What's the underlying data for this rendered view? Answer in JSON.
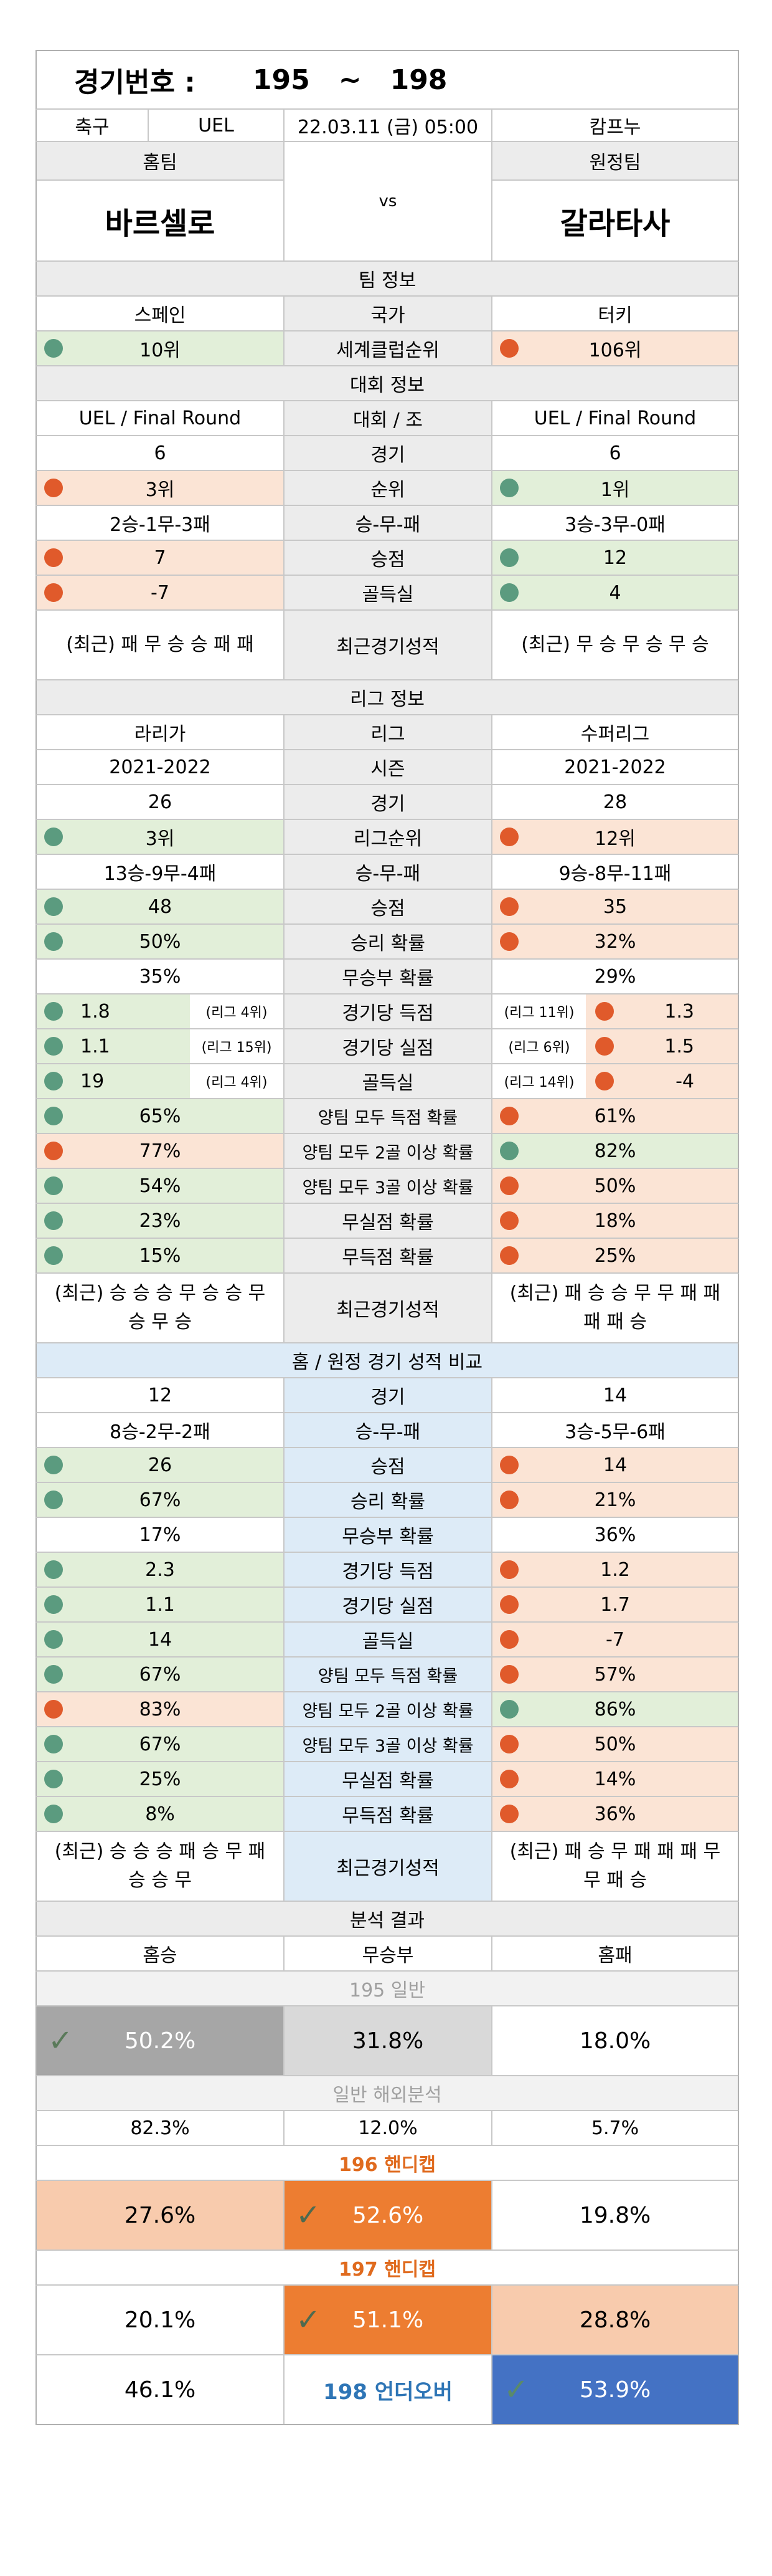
{
  "title": {
    "label": "경기번호 :",
    "from": "195",
    "tilde": "~",
    "to": "198"
  },
  "match": {
    "sport": "축구",
    "league": "UEL",
    "datetime": "22.03.11 (금) 05:00",
    "venue": "캄프누"
  },
  "teams": {
    "home_label": "홈팀",
    "away_label": "원정팀",
    "vs": "vs",
    "home": "바르셀로",
    "away": "갈라타사"
  },
  "sections": {
    "team_info": "팀 정보",
    "tournament_info": "대회 정보",
    "league_info": "리그 정보",
    "home_away": "홈 / 원정 경기 성적 비교",
    "analysis": "분석 결과"
  },
  "team_info": [
    {
      "home": "스페인",
      "label": "국가",
      "away": "터키",
      "hc": "",
      "ac": ""
    },
    {
      "home": "10위",
      "label": "세계클럽순위",
      "away": "106위",
      "hc": "green",
      "ac": "salmon",
      "hd": "g",
      "ad": "r"
    }
  ],
  "tournament_info": [
    {
      "home": "UEL / Final Round",
      "label": "대회 / 조",
      "away": "UEL / Final Round"
    },
    {
      "home": "6",
      "label": "경기",
      "away": "6"
    },
    {
      "home": "3위",
      "label": "순위",
      "away": "1위",
      "hc": "salmon",
      "ac": "green",
      "hd": "r",
      "ad": "g"
    },
    {
      "home": "2승-1무-3패",
      "label": "승-무-패",
      "away": "3승-3무-0패"
    },
    {
      "home": "7",
      "label": "승점",
      "away": "12",
      "hc": "salmon",
      "ac": "green",
      "hd": "r",
      "ad": "g"
    },
    {
      "home": "-7",
      "label": "골득실",
      "away": "4",
      "hc": "salmon",
      "ac": "green",
      "hd": "r",
      "ad": "g"
    },
    {
      "home": "(최근) 패 무 승 승 패 패",
      "label": "최근경기성적",
      "away": "(최근) 무 승 무 승 무 승",
      "tall": true
    }
  ],
  "league_info": [
    {
      "home": "라리가",
      "label": "리그",
      "away": "수퍼리그"
    },
    {
      "home": "2021-2022",
      "label": "시즌",
      "away": "2021-2022"
    },
    {
      "home": "26",
      "label": "경기",
      "away": "28"
    },
    {
      "home": "3위",
      "label": "리그순위",
      "away": "12위",
      "hc": "green",
      "ac": "salmon",
      "hd": "g",
      "ad": "r"
    },
    {
      "home": "13승-9무-4패",
      "label": "승-무-패",
      "away": "9승-8무-11패"
    },
    {
      "home": "48",
      "label": "승점",
      "away": "35",
      "hc": "green",
      "ac": "salmon",
      "hd": "g",
      "ad": "r"
    },
    {
      "home": "50%",
      "label": "승리 확률",
      "away": "32%",
      "hc": "green",
      "ac": "salmon",
      "hd": "g",
      "ad": "r"
    },
    {
      "home": "35%",
      "label": "무승부 확률",
      "away": "29%"
    },
    {
      "home": "1.8",
      "label": "경기당 득점",
      "away": "1.3",
      "hc": "green",
      "ac": "salmon",
      "hd": "g",
      "ad": "r",
      "hr": "(리그 4위)",
      "ar": "(리그 11위)"
    },
    {
      "home": "1.1",
      "label": "경기당 실점",
      "away": "1.5",
      "hc": "green",
      "ac": "salmon",
      "hd": "g",
      "ad": "r",
      "hr": "(리그 15위)",
      "ar": "(리그 6위)"
    },
    {
      "home": "19",
      "label": "골득실",
      "away": "-4",
      "hc": "green",
      "ac": "salmon",
      "hd": "g",
      "ad": "r",
      "hr": "(리그 4위)",
      "ar": "(리그 14위)"
    },
    {
      "home": "65%",
      "label": "양팀 모두 득점 확률",
      "away": "61%",
      "hc": "green",
      "ac": "salmon",
      "hd": "g",
      "ad": "r"
    },
    {
      "home": "77%",
      "label": "양팀 모두 2골 이상 확률",
      "away": "82%",
      "hc": "salmon",
      "ac": "green",
      "hd": "r",
      "ad": "g"
    },
    {
      "home": "54%",
      "label": "양팀 모두 3골 이상 확률",
      "away": "50%",
      "hc": "green",
      "ac": "salmon",
      "hd": "g",
      "ad": "r"
    },
    {
      "home": "23%",
      "label": "무실점 확률",
      "away": "18%",
      "hc": "green",
      "ac": "salmon",
      "hd": "g",
      "ad": "r"
    },
    {
      "home": "15%",
      "label": "무득점 확률",
      "away": "25%",
      "hc": "green",
      "ac": "salmon",
      "hd": "g",
      "ad": "r"
    },
    {
      "home": "(최근) 승 승 승 무 승 승 무 승 무 승",
      "label": "최근경기성적",
      "away": "(최근) 패 승 승 무 무 패 패 패 패 승",
      "tall": true
    }
  ],
  "home_away": [
    {
      "home": "12",
      "label": "경기",
      "away": "14"
    },
    {
      "home": "8승-2무-2패",
      "label": "승-무-패",
      "away": "3승-5무-6패"
    },
    {
      "home": "26",
      "label": "승점",
      "away": "14",
      "hc": "green",
      "ac": "salmon",
      "hd": "g",
      "ad": "r"
    },
    {
      "home": "67%",
      "label": "승리 확률",
      "away": "21%",
      "hc": "green",
      "ac": "salmon",
      "hd": "g",
      "ad": "r"
    },
    {
      "home": "17%",
      "label": "무승부 확률",
      "away": "36%"
    },
    {
      "home": "2.3",
      "label": "경기당 득점",
      "away": "1.2",
      "hc": "green",
      "ac": "salmon",
      "hd": "g",
      "ad": "r"
    },
    {
      "home": "1.1",
      "label": "경기당 실점",
      "away": "1.7",
      "hc": "green",
      "ac": "salmon",
      "hd": "g",
      "ad": "r"
    },
    {
      "home": "14",
      "label": "골득실",
      "away": "-7",
      "hc": "green",
      "ac": "salmon",
      "hd": "g",
      "ad": "r"
    },
    {
      "home": "67%",
      "label": "양팀 모두 득점 확률",
      "away": "57%",
      "hc": "green",
      "ac": "salmon",
      "hd": "g",
      "ad": "r"
    },
    {
      "home": "83%",
      "label": "양팀 모두 2골 이상 확률",
      "away": "86%",
      "hc": "salmon",
      "ac": "green",
      "hd": "r",
      "ad": "g"
    },
    {
      "home": "67%",
      "label": "양팀 모두 3골 이상 확률",
      "away": "50%",
      "hc": "green",
      "ac": "salmon",
      "hd": "g",
      "ad": "r"
    },
    {
      "home": "25%",
      "label": "무실점 확률",
      "away": "14%",
      "hc": "green",
      "ac": "salmon",
      "hd": "g",
      "ad": "r"
    },
    {
      "home": "8%",
      "label": "무득점 확률",
      "away": "36%",
      "hc": "green",
      "ac": "salmon",
      "hd": "g",
      "ad": "r"
    },
    {
      "home": "(최근) 승 승 승 패 승 무 패 승 승 무",
      "label": "최근경기성적",
      "away": "(최근) 패 승 무 패 패 패 무 무 패 승",
      "tall": true
    }
  ],
  "analysis": {
    "headers": {
      "win": "홈승",
      "draw": "무승부",
      "loss": "홈패"
    },
    "g195": {
      "title": "195 일반",
      "win": "50.2%",
      "draw": "31.8%",
      "loss": "18.0%"
    },
    "overseas": {
      "title": "일반 해외분석",
      "win": "82.3%",
      "draw": "12.0%",
      "loss": "5.7%"
    },
    "g196": {
      "title": "196 핸디캡",
      "win": "27.6%",
      "draw": "52.6%",
      "loss": "19.8%"
    },
    "g197": {
      "title": "197 핸디캡",
      "win": "20.1%",
      "draw": "51.1%",
      "loss": "28.8%"
    },
    "g198": {
      "title": "198 언더오버",
      "under": "46.1%",
      "over": "53.9%"
    }
  },
  "colors": {
    "green": "#e2efd9",
    "salmon": "#fbe4d5",
    "gray": "#ececec",
    "blue": "#ddebf7",
    "orange": "#ed7d31",
    "pale_orange": "#f8cbad",
    "dark_gray": "#a6a6a6",
    "light_gray": "#d9d9d9",
    "strong_blue": "#4472c4",
    "title_orange": "#e06b1f",
    "title_blue": "#2e75b6",
    "dot_green": "#5b9b7f",
    "dot_red": "#e05a2b"
  },
  "icons": {
    "check": "check-icon",
    "dot": "indicator-dot-icon"
  }
}
